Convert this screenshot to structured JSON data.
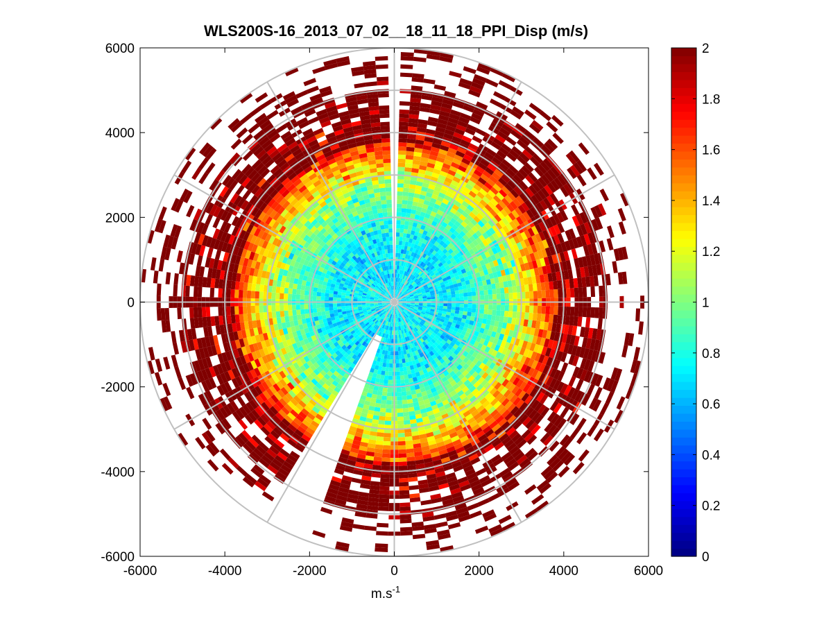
{
  "chart_data": {
    "type": "heatmap",
    "subtype": "polar-ppi",
    "title": "WLS200S-16_2013_07_02__18_11_18_PPI_Disp (m/s)",
    "xlabel": "m.s",
    "xlabel_superscript": "-1",
    "ylabel": "",
    "xlim": [
      -6000,
      6000
    ],
    "ylim": [
      -6000,
      6000
    ],
    "xticks": [
      "-6000",
      "-4000",
      "-2000",
      "0",
      "2000",
      "4000",
      "6000"
    ],
    "yticks": [
      "-6000",
      "-4000",
      "-2000",
      "0",
      "2000",
      "4000",
      "6000"
    ],
    "x_tick_values": [
      -6000,
      -4000,
      -2000,
      0,
      2000,
      4000,
      6000
    ],
    "y_tick_values": [
      -6000,
      -4000,
      -2000,
      0,
      2000,
      4000,
      6000
    ],
    "max_range": 6000,
    "polar_grid": {
      "ring_ranges": [
        1000,
        2000,
        3000,
        4000,
        5000,
        6000
      ],
      "spoke_angles_deg": [
        0,
        30,
        60,
        90,
        120,
        150,
        180,
        210,
        240,
        270,
        300,
        330
      ]
    },
    "colorbar": {
      "colormap": "jet",
      "min": 0,
      "max": 2,
      "tick_values": [
        0,
        0.2,
        0.4,
        0.6,
        0.8,
        1,
        1.2,
        1.4,
        1.6,
        1.8,
        2
      ],
      "tick_labels": [
        "0",
        "0.2",
        "0.4",
        "0.6",
        "0.8",
        "1",
        "1.2",
        "1.4",
        "1.6",
        "1.8",
        "2"
      ]
    },
    "field_description": "Velocity dispersion (m/s) on a radial scan; values near 0.6-1.1 within ~2500 m range, rising to >=1.8 (saturated) beyond ~3500 m; sparse returns beyond ~5000 m; gaps at azimuths ~0 deg (north) and ~200-210 deg."
  },
  "colors": {
    "background": "#ffffff",
    "axes_frame": "#000000",
    "polar_grid": "#c0c0c0"
  }
}
